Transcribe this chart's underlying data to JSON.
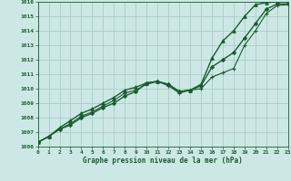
{
  "title": "Graphe pression niveau de la mer (hPa)",
  "bg_color": "#cce8e4",
  "grid_color": "#a8ccc8",
  "line_color": "#1a5c30",
  "xlim": [
    0,
    23
  ],
  "ylim": [
    1006,
    1016
  ],
  "yticks": [
    1006,
    1007,
    1008,
    1009,
    1010,
    1011,
    1012,
    1013,
    1014,
    1015,
    1016
  ],
  "xticks": [
    0,
    1,
    2,
    3,
    4,
    5,
    6,
    7,
    8,
    9,
    10,
    11,
    12,
    13,
    14,
    15,
    16,
    17,
    18,
    19,
    20,
    21,
    22,
    23
  ],
  "series": [
    {
      "x": [
        0,
        1,
        2,
        3,
        4,
        5,
        6,
        7,
        8,
        9,
        10,
        11,
        12,
        13,
        14,
        15,
        16,
        17,
        18,
        19,
        20,
        21,
        22,
        23
      ],
      "y": [
        1006.3,
        1006.7,
        1007.2,
        1007.5,
        1008.0,
        1008.3,
        1008.7,
        1009.0,
        1009.5,
        1009.8,
        1010.4,
        1010.5,
        1010.3,
        1009.8,
        1009.9,
        1010.2,
        1011.5,
        1012.0,
        1012.5,
        1013.5,
        1014.5,
        1015.5,
        1015.85,
        1015.85
      ],
      "marker": "D",
      "ms": 2.0,
      "lw": 1.0
    },
    {
      "x": [
        0,
        1,
        2,
        3,
        4,
        5,
        6,
        7,
        8,
        9,
        10,
        11,
        12,
        13,
        14,
        15,
        16,
        17,
        18,
        19,
        20,
        21,
        22,
        23
      ],
      "y": [
        1006.3,
        1006.7,
        1007.3,
        1007.8,
        1008.3,
        1008.6,
        1009.0,
        1009.4,
        1009.9,
        1010.1,
        1010.4,
        1010.5,
        1010.3,
        1009.8,
        1009.9,
        1010.3,
        1012.1,
        1013.3,
        1014.0,
        1015.0,
        1015.8,
        1015.95,
        1016.0,
        1016.0
      ],
      "marker": "^",
      "ms": 2.5,
      "lw": 1.0
    },
    {
      "x": [
        0,
        1,
        2,
        3,
        4,
        5,
        6,
        7,
        8,
        9,
        10,
        11,
        12,
        13,
        14,
        15,
        16,
        17,
        18,
        19,
        20,
        21,
        22,
        23
      ],
      "y": [
        1006.3,
        1006.7,
        1007.2,
        1007.6,
        1008.1,
        1008.4,
        1008.8,
        1009.2,
        1009.7,
        1009.9,
        1010.3,
        1010.5,
        1010.2,
        1009.7,
        1009.9,
        1010.0,
        1010.8,
        1011.1,
        1011.4,
        1013.0,
        1014.0,
        1015.2,
        1015.75,
        1015.8
      ],
      "marker": "+",
      "ms": 3.5,
      "lw": 0.8
    }
  ]
}
